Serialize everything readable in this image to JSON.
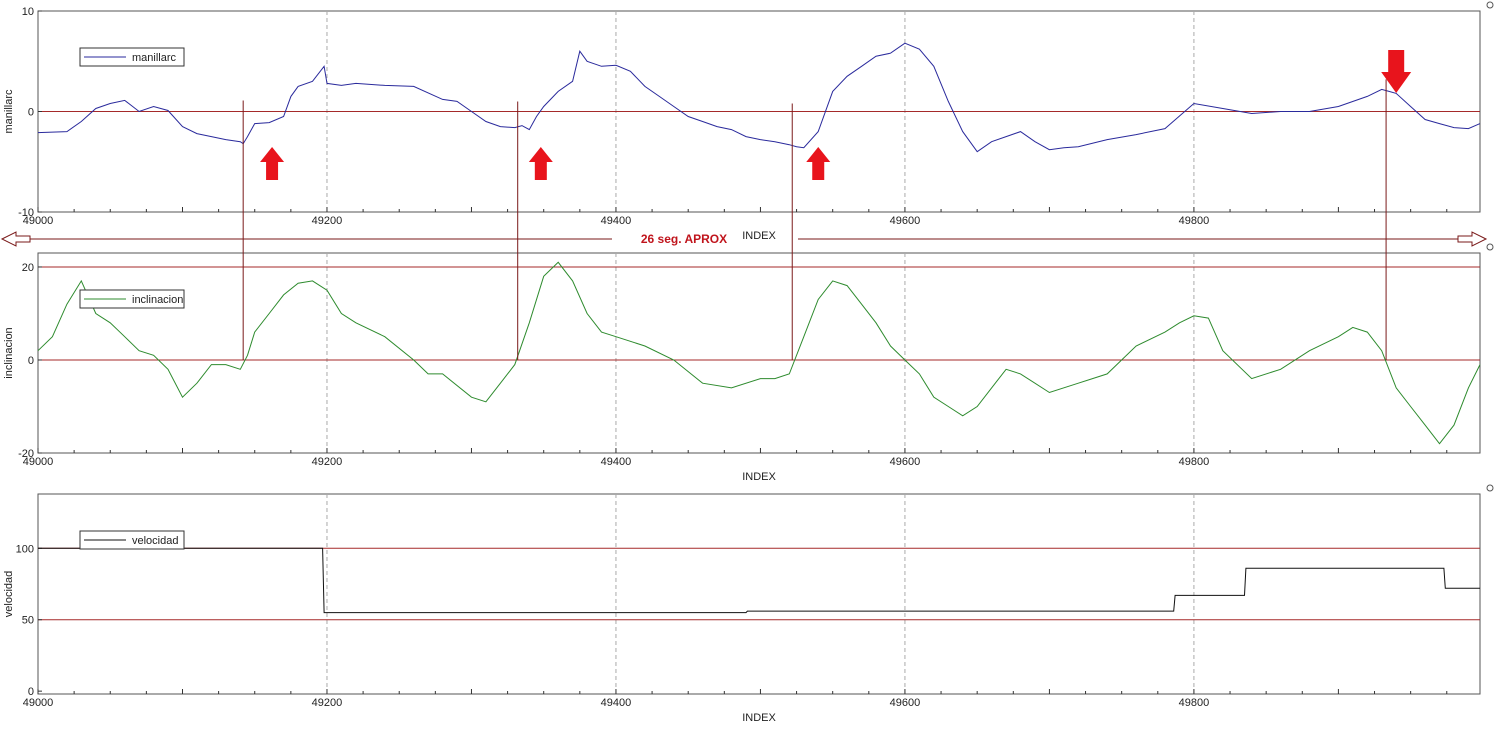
{
  "colors": {
    "manillar": "#2a2a9c",
    "inclinacion": "#2e8b2e",
    "velocidad": "#111111",
    "ref_line": "#a52a2a",
    "marker_line": "#7a1a1a",
    "arrow": "#e8141c",
    "annotation": "#c0141c"
  },
  "annotation": {
    "span_text": "26 seg. APROX"
  },
  "chart_data": [
    {
      "type": "line",
      "id": "manillar",
      "xlabel": "INDEX",
      "ylabel": "manillarc",
      "xlim": [
        49000,
        49998
      ],
      "ylim": [
        -10,
        10
      ],
      "x_ticks": [
        49000,
        49200,
        49400,
        49600,
        49800
      ],
      "y_ticks": [
        -10,
        0,
        10
      ],
      "grid": "vertical dashed",
      "legend_placement": "top-left",
      "reference_lines": [
        0
      ],
      "series": [
        {
          "name": "manillarc",
          "x": [
            49000,
            49020,
            49030,
            49040,
            49050,
            49060,
            49070,
            49080,
            49090,
            49100,
            49110,
            49120,
            49130,
            49140,
            49142,
            49145,
            49150,
            49160,
            49170,
            49175,
            49180,
            49190,
            49198,
            49200,
            49210,
            49220,
            49240,
            49260,
            49280,
            49290,
            49300,
            49310,
            49320,
            49330,
            49335,
            49340,
            49345,
            49350,
            49360,
            49370,
            49375,
            49380,
            49390,
            49400,
            49410,
            49420,
            49430,
            49440,
            49450,
            49460,
            49470,
            49480,
            49490,
            49500,
            49510,
            49520,
            49525,
            49530,
            49540,
            49550,
            49560,
            49570,
            49580,
            49590,
            49600,
            49610,
            49620,
            49630,
            49640,
            49650,
            49660,
            49670,
            49680,
            49690,
            49700,
            49710,
            49720,
            49740,
            49760,
            49780,
            49800,
            49820,
            49840,
            49860,
            49880,
            49900,
            49920,
            49930,
            49935,
            49940,
            49950,
            49960,
            49970,
            49980,
            49990,
            49998
          ],
          "y": [
            -2.1,
            -2.0,
            -1.0,
            0.3,
            0.8,
            1.1,
            0.0,
            0.5,
            0.1,
            -1.5,
            -2.2,
            -2.5,
            -2.8,
            -3.0,
            -3.2,
            -2.5,
            -1.2,
            -1.1,
            -0.5,
            1.5,
            2.5,
            3.0,
            4.5,
            2.8,
            2.6,
            2.8,
            2.6,
            2.5,
            1.2,
            1.0,
            0.0,
            -1.0,
            -1.5,
            -1.6,
            -1.4,
            -1.8,
            -0.5,
            0.5,
            2.0,
            3.0,
            6.0,
            5.0,
            4.5,
            4.6,
            4.0,
            2.5,
            1.5,
            0.5,
            -0.5,
            -1.0,
            -1.5,
            -1.8,
            -2.5,
            -2.8,
            -3.0,
            -3.3,
            -3.5,
            -3.6,
            -2.0,
            2.0,
            3.5,
            4.5,
            5.5,
            5.8,
            6.8,
            6.2,
            4.5,
            1.0,
            -2.0,
            -4.0,
            -3.0,
            -2.5,
            -2.0,
            -3.0,
            -3.8,
            -3.6,
            -3.5,
            -2.8,
            -2.3,
            -1.7,
            0.8,
            0.3,
            -0.2,
            0.0,
            0.0,
            0.5,
            1.5,
            2.2,
            2.0,
            1.8,
            0.5,
            -0.8,
            -1.2,
            -1.6,
            -1.7,
            -1.2
          ]
        }
      ]
    },
    {
      "type": "line",
      "id": "inclinacion",
      "xlabel": "INDEX",
      "ylabel": "inclinacion",
      "xlim": [
        49000,
        49998
      ],
      "ylim": [
        -20,
        23
      ],
      "x_ticks": [
        49000,
        49200,
        49400,
        49600,
        49800
      ],
      "y_ticks": [
        -20,
        0,
        20
      ],
      "grid": "vertical dashed",
      "legend_placement": "top-left",
      "reference_lines": [
        0,
        20
      ],
      "series": [
        {
          "name": "inclinacion",
          "x": [
            49000,
            49010,
            49020,
            49030,
            49040,
            49050,
            49060,
            49070,
            49080,
            49090,
            49100,
            49110,
            49120,
            49130,
            49140,
            49145,
            49150,
            49160,
            49170,
            49180,
            49190,
            49200,
            49210,
            49220,
            49240,
            49260,
            49270,
            49280,
            49300,
            49310,
            49320,
            49330,
            49340,
            49350,
            49360,
            49370,
            49380,
            49390,
            49400,
            49420,
            49440,
            49460,
            49480,
            49500,
            49510,
            49520,
            49530,
            49540,
            49550,
            49560,
            49570,
            49580,
            49590,
            49600,
            49610,
            49620,
            49630,
            49640,
            49650,
            49660,
            49670,
            49680,
            49700,
            49720,
            49740,
            49760,
            49780,
            49790,
            49800,
            49810,
            49820,
            49840,
            49860,
            49880,
            49900,
            49910,
            49920,
            49930,
            49940,
            49950,
            49960,
            49970,
            49980,
            49990,
            49998
          ],
          "y": [
            2.0,
            5.0,
            12.0,
            17.0,
            10.0,
            8.0,
            5.0,
            2.0,
            1.0,
            -2.0,
            -8.0,
            -5.0,
            -1.0,
            -1.0,
            -2.0,
            1.0,
            6.0,
            10.0,
            14.0,
            16.5,
            17.0,
            15.0,
            10.0,
            8.0,
            5.0,
            0.0,
            -3.0,
            -3.0,
            -8.0,
            -9.0,
            -5.0,
            -1.0,
            8.0,
            18.0,
            21.0,
            17.0,
            10.0,
            6.0,
            5.0,
            3.0,
            0.0,
            -5.0,
            -6.0,
            -4.0,
            -4.0,
            -3.0,
            5.0,
            13.0,
            17.0,
            16.0,
            12.0,
            8.0,
            3.0,
            0.0,
            -3.0,
            -8.0,
            -10.0,
            -12.0,
            -10.0,
            -6.0,
            -2.0,
            -3.0,
            -7.0,
            -5.0,
            -3.0,
            3.0,
            6.0,
            8.0,
            9.5,
            9.0,
            2.0,
            -4.0,
            -2.0,
            2.0,
            5.0,
            7.0,
            6.0,
            2.0,
            -6.0,
            -10.0,
            -14.0,
            -18.0,
            -14.0,
            -6.0,
            -1.0
          ]
        }
      ]
    },
    {
      "type": "line",
      "id": "velocidad",
      "xlabel": "INDEX",
      "ylabel": "velocidad",
      "xlim": [
        49000,
        49998
      ],
      "ylim": [
        -2,
        138
      ],
      "x_ticks": [
        49000,
        49200,
        49400,
        49600,
        49800
      ],
      "y_ticks": [
        0,
        50,
        100
      ],
      "grid": "vertical dashed",
      "legend_placement": "top-left",
      "reference_lines": [
        50,
        100
      ],
      "series": [
        {
          "name": "velocidad",
          "x": [
            49000,
            49197,
            49198,
            49490,
            49491,
            49786,
            49787,
            49835,
            49836,
            49973,
            49974,
            49998
          ],
          "y": [
            100,
            100,
            55,
            55,
            56,
            56,
            67,
            67,
            86,
            86,
            72,
            72
          ]
        }
      ]
    }
  ],
  "markers": {
    "vertical_lines_x": [
      49142,
      49332,
      49522,
      49933
    ],
    "up_arrows_x": [
      49162,
      49348,
      49540
    ],
    "down_arrow_x": [
      49940
    ],
    "span_x": [
      49000,
      49998
    ]
  }
}
